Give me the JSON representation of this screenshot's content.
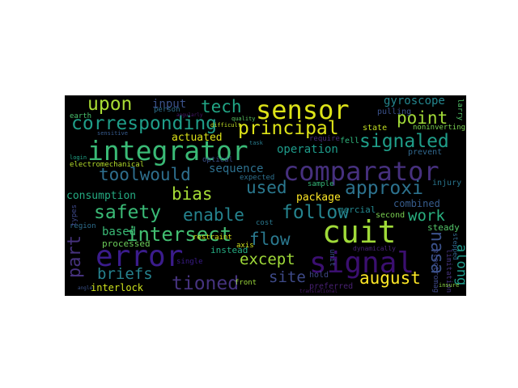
{
  "words": [
    {
      "text": "comparator",
      "color": "#46307e"
    },
    {
      "text": "cuit",
      "color": "#a0da39"
    },
    {
      "text": "integrator",
      "color": "#3aba76"
    },
    {
      "text": "sensor",
      "color": "#dde318"
    },
    {
      "text": "signal",
      "color": "#3b0f70"
    },
    {
      "text": "error",
      "color": "#3b1c8c"
    },
    {
      "text": "intersect",
      "color": "#42be71"
    },
    {
      "text": "principal",
      "color": "#dde318"
    },
    {
      "text": "corresponding",
      "color": "#1f9e89"
    },
    {
      "text": "follow",
      "color": "#25838e"
    },
    {
      "text": "approxi",
      "color": "#2c728e"
    },
    {
      "text": "safety",
      "color": "#3aba76"
    },
    {
      "text": "upon",
      "color": "#a8db34"
    },
    {
      "text": "signaled",
      "color": "#1f9e89"
    },
    {
      "text": "tioned",
      "color": "#46337f"
    },
    {
      "text": "august",
      "color": "#fde725"
    },
    {
      "text": "enable",
      "color": "#25838e"
    },
    {
      "text": "toolwould",
      "color": "#2e6f8e"
    },
    {
      "text": "point",
      "color": "#a2da37"
    },
    {
      "text": "tech",
      "color": "#21a585"
    },
    {
      "text": "used",
      "color": "#2a788e"
    },
    {
      "text": "bias",
      "color": "#a5db36"
    },
    {
      "text": "except",
      "color": "#a0da39"
    },
    {
      "text": "flow",
      "color": "#2a788e"
    },
    {
      "text": "briefs",
      "color": "#26828e"
    },
    {
      "text": "site",
      "color": "#3e4a89"
    },
    {
      "text": "work",
      "color": "#29af7f"
    },
    {
      "text": "nasa",
      "color": "#3b528b"
    },
    {
      "text": "part",
      "color": "#46327e"
    },
    {
      "text": "along",
      "color": "#1f9a8a"
    },
    {
      "text": "operation",
      "color": "#1e9b8a"
    },
    {
      "text": "input",
      "color": "#3b528b"
    },
    {
      "text": "gyroscope",
      "color": "#24868e"
    },
    {
      "text": "sequence",
      "color": "#2d708e"
    },
    {
      "text": "consumption",
      "color": "#25ab82"
    },
    {
      "text": "actuated",
      "color": "#dde318"
    },
    {
      "text": "based",
      "color": "#3aba76"
    },
    {
      "text": "package",
      "color": "#fde725"
    },
    {
      "text": "combined",
      "color": "#365c8d"
    },
    {
      "text": "interlock",
      "color": "#cde11d"
    },
    {
      "text": "mercial",
      "color": "#24878e"
    },
    {
      "text": "steady",
      "color": "#54c568"
    },
    {
      "text": "instead",
      "color": "#25ac82"
    },
    {
      "text": "processed",
      "color": "#6ccd5a"
    },
    {
      "text": "electromechanical",
      "color": "#b5de2b"
    },
    {
      "text": "noninverting",
      "color": "#7ad151"
    },
    {
      "text": "injury",
      "color": "#2a768e"
    },
    {
      "text": "prevent",
      "color": "#31688e"
    },
    {
      "text": "state",
      "color": "#c2df23"
    },
    {
      "text": "pulling",
      "color": "#3b518b"
    },
    {
      "text": "fell",
      "color": "#2fb47c"
    },
    {
      "text": "second",
      "color": "#7ad151"
    },
    {
      "text": "restraint",
      "color": "#d8e219"
    },
    {
      "text": "region",
      "color": "#2e6e8e"
    },
    {
      "text": "preferred",
      "color": "#482173"
    },
    {
      "text": "hold",
      "color": "#3f4788"
    },
    {
      "text": "sample",
      "color": "#35b779"
    },
    {
      "text": "require",
      "color": "#472c7a"
    },
    {
      "text": "axis",
      "color": "#cde11d"
    },
    {
      "text": "front",
      "color": "#9dd93b"
    },
    {
      "text": "optical",
      "color": "#3b528b"
    },
    {
      "text": "expected",
      "color": "#2d708e"
    },
    {
      "text": "cost",
      "color": "#2a788e"
    },
    {
      "text": "person",
      "color": "#2d708e"
    },
    {
      "text": "earth",
      "color": "#4ac16d"
    },
    {
      "text": "single",
      "color": "#3b1c8c"
    },
    {
      "text": "unit",
      "color": "#3b528b"
    },
    {
      "text": "limitation",
      "color": "#46337f"
    },
    {
      "text": "electromag",
      "color": "#3e4989"
    },
    {
      "text": "larry",
      "color": "#52c569"
    },
    {
      "text": "difficult",
      "color": "#c0df25"
    },
    {
      "text": "quality",
      "color": "#5ac864"
    },
    {
      "text": "task",
      "color": "#287c8e"
    },
    {
      "text": "login",
      "color": "#20a386"
    },
    {
      "text": "sensitive",
      "color": "#375b8d"
    },
    {
      "text": "angularly",
      "color": "#481a6c"
    },
    {
      "text": "types",
      "color": "#3e4989"
    },
    {
      "text": "dynamically",
      "color": "#482475"
    },
    {
      "text": "stepped",
      "color": "#31688e"
    },
    {
      "text": "insure",
      "color": "#8bd646"
    },
    {
      "text": "translational",
      "color": "#48186a"
    },
    {
      "text": "angle",
      "color": "#3b528b"
    }
  ]
}
